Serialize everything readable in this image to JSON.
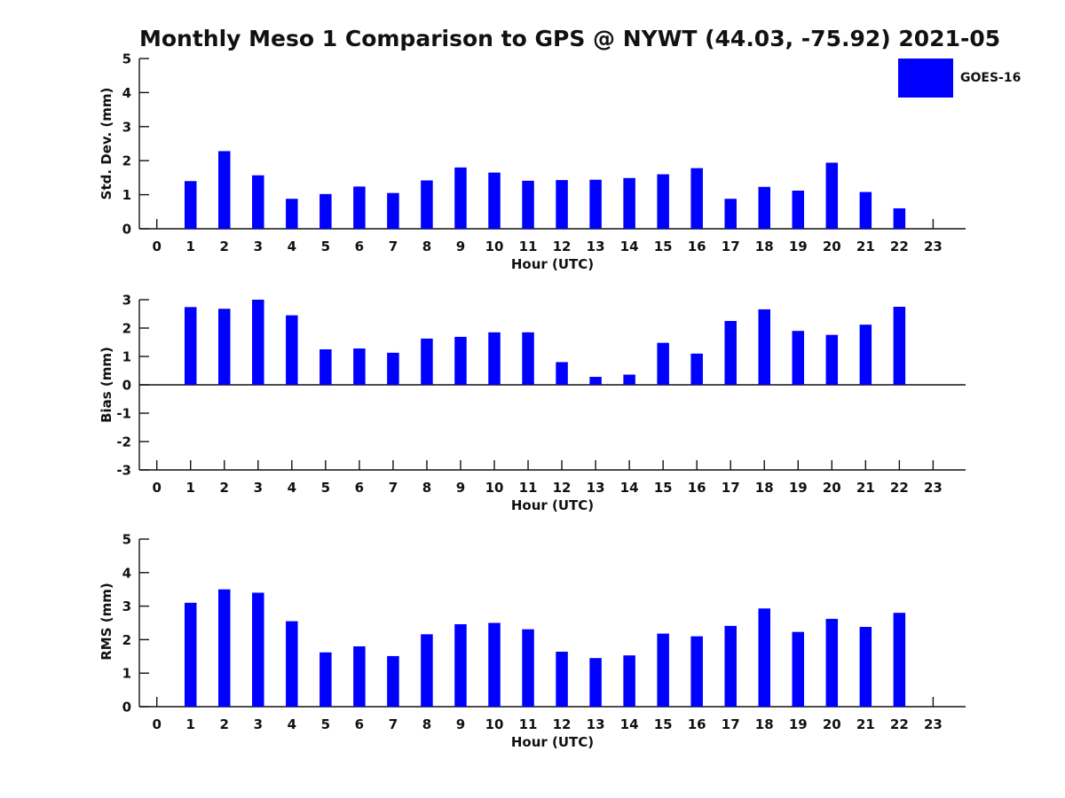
{
  "title": "Monthly Meso 1 Comparison to GPS @ NYWT (44.03, -75.92) 2021-05",
  "legend": {
    "label": "GOES-16",
    "color": "#0000ff"
  },
  "chart_data": [
    {
      "type": "bar",
      "series_name": "GOES-16",
      "ylabel": "Std. Dev. (mm)",
      "xlabel": "Hour (UTC)",
      "ylim": [
        0,
        5
      ],
      "yticks": [
        0,
        1,
        2,
        3,
        4,
        5
      ],
      "categories": [
        "0",
        "1",
        "2",
        "3",
        "4",
        "5",
        "6",
        "7",
        "8",
        "9",
        "10",
        "11",
        "12",
        "13",
        "14",
        "15",
        "16",
        "17",
        "18",
        "19",
        "20",
        "21",
        "22",
        "23"
      ],
      "values": [
        null,
        1.4,
        2.28,
        1.57,
        0.88,
        1.02,
        1.24,
        1.05,
        1.42,
        1.8,
        1.65,
        1.41,
        1.43,
        1.44,
        1.49,
        1.6,
        1.78,
        0.88,
        1.23,
        1.12,
        1.94,
        1.08,
        0.6,
        null
      ],
      "grid": false,
      "bar_color": "#0000ff"
    },
    {
      "type": "bar",
      "series_name": "GOES-16",
      "ylabel": "Bias (mm)",
      "xlabel": "Hour (UTC)",
      "ylim": [
        -3,
        3
      ],
      "yticks": [
        -3,
        -2,
        -1,
        0,
        1,
        2,
        3
      ],
      "categories": [
        "0",
        "1",
        "2",
        "3",
        "4",
        "5",
        "6",
        "7",
        "8",
        "9",
        "10",
        "11",
        "12",
        "13",
        "14",
        "15",
        "16",
        "17",
        "18",
        "19",
        "20",
        "21",
        "22",
        "23"
      ],
      "values": [
        null,
        2.74,
        2.68,
        3.0,
        2.45,
        1.25,
        1.28,
        1.13,
        1.63,
        1.69,
        1.85,
        1.85,
        0.8,
        0.28,
        0.36,
        1.48,
        1.1,
        2.25,
        2.66,
        1.9,
        1.76,
        2.12,
        2.75,
        null
      ],
      "grid": false,
      "bar_color": "#0000ff"
    },
    {
      "type": "bar",
      "series_name": "GOES-16",
      "ylabel": "RMS (mm)",
      "xlabel": "Hour (UTC)",
      "ylim": [
        0,
        5
      ],
      "yticks": [
        0,
        1,
        2,
        3,
        4,
        5
      ],
      "categories": [
        "0",
        "1",
        "2",
        "3",
        "4",
        "5",
        "6",
        "7",
        "8",
        "9",
        "10",
        "11",
        "12",
        "13",
        "14",
        "15",
        "16",
        "17",
        "18",
        "19",
        "20",
        "21",
        "22",
        "23"
      ],
      "values": [
        null,
        3.1,
        3.5,
        3.4,
        2.55,
        1.62,
        1.8,
        1.51,
        2.16,
        2.46,
        2.5,
        2.31,
        1.64,
        1.45,
        1.53,
        2.18,
        2.1,
        2.41,
        2.93,
        2.23,
        2.62,
        2.38,
        2.8,
        null
      ],
      "grid": false,
      "bar_color": "#0000ff"
    }
  ]
}
